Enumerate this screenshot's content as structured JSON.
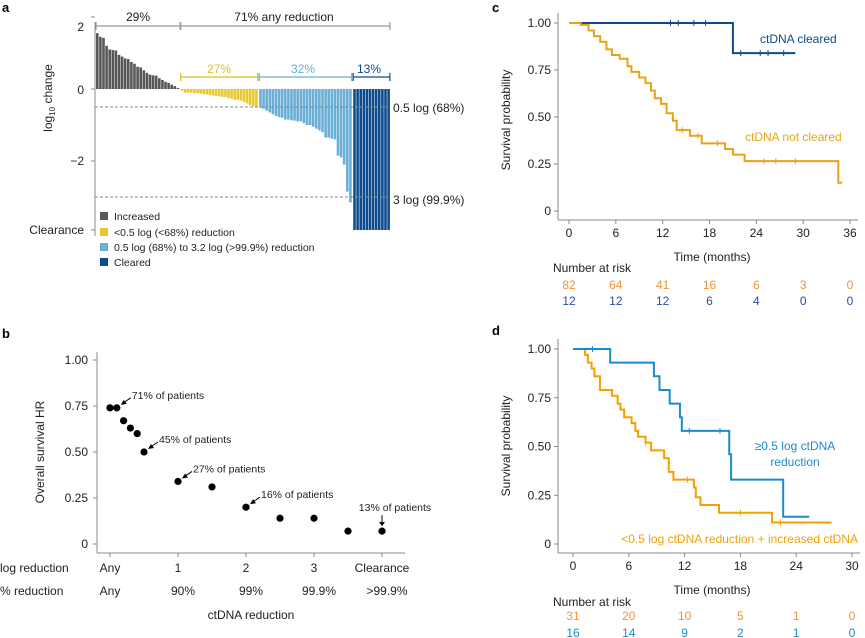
{
  "panels": {
    "a": "a",
    "b": "b",
    "c": "c",
    "d": "d"
  },
  "chart_data": [
    {
      "panel": "a",
      "type": "bar",
      "ylabel_main": "log",
      "ylabel_sub": "10",
      "ylabel_rest": " change",
      "yticks": [
        "2",
        "0",
        "−2",
        "Clearance"
      ],
      "ylim": [
        -4,
        2
      ],
      "colors": {
        "increased": "#575757",
        "small": "#e9c832",
        "mid": "#6aaed6",
        "cleared": "#0e4a8e"
      },
      "groups": [
        {
          "key": "increased",
          "values": [
            1.55,
            1.45,
            1.42,
            1.2,
            1.1,
            1.08,
            1.07,
            0.95,
            0.9,
            0.85,
            0.83,
            0.75,
            0.7,
            0.62,
            0.6,
            0.52,
            0.45,
            0.4,
            0.38,
            0.37,
            0.3,
            0.25,
            0.2,
            0.17,
            0.12,
            0.08,
            0.03
          ]
        },
        {
          "key": "small",
          "values": [
            -0.05,
            -0.1,
            -0.1,
            -0.1,
            -0.12,
            -0.12,
            -0.13,
            -0.15,
            -0.15,
            -0.17,
            -0.18,
            -0.2,
            -0.2,
            -0.22,
            -0.22,
            -0.25,
            -0.27,
            -0.3,
            -0.3,
            -0.32,
            -0.36,
            -0.4,
            -0.45,
            -0.48,
            -0.5
          ]
        },
        {
          "key": "mid",
          "values": [
            -0.52,
            -0.55,
            -0.6,
            -0.65,
            -0.7,
            -0.75,
            -0.78,
            -0.8,
            -0.85,
            -0.85,
            -0.87,
            -0.88,
            -0.9,
            -0.9,
            -0.95,
            -1.0,
            -1.0,
            -1.05,
            -1.1,
            -1.15,
            -1.2,
            -1.35,
            -1.35,
            -1.38,
            -1.4,
            -1.85,
            -1.9,
            -2.1,
            -2.85,
            -3.15
          ]
        },
        {
          "key": "cleared",
          "values": [
            "Clearance",
            "Clearance",
            "Clearance",
            "Clearance",
            "Clearance",
            "Clearance",
            "Clearance",
            "Clearance",
            "Clearance",
            "Clearance",
            "Clearance",
            "Clearance"
          ]
        }
      ],
      "reference_lines": [
        {
          "value": -0.5,
          "label": "0.5 log (68%)"
        },
        {
          "value": -3,
          "label": "3 log (99.9%)"
        }
      ],
      "brackets": {
        "increased": "29%",
        "any": "71% any reduction",
        "small": "27%",
        "mid": "32%",
        "cleared": "13%"
      },
      "legend": [
        "Increased",
        "<0.5 log (<68%) reduction",
        "0.5 log (68%) to 3.2 log (>99.9%) reduction",
        "Cleared"
      ]
    },
    {
      "panel": "b",
      "type": "scatter",
      "ylabel": "Overall survival HR",
      "xlabel": "ctDNA reduction",
      "yticks": [
        "1.00",
        "0.75",
        "0.50",
        "0.25",
        "0"
      ],
      "ylim": [
        0,
        1
      ],
      "row_labels": [
        "log reduction",
        "% reduction"
      ],
      "xticks_log": [
        "Any",
        "1",
        "2",
        "3",
        "Clearance"
      ],
      "xticks_pct": [
        "Any",
        "90%",
        "99%",
        "99.9%",
        ">99.9%"
      ],
      "x": [
        0,
        0.1,
        0.2,
        0.3,
        0.4,
        0.5,
        1,
        1.5,
        2,
        2.5,
        3,
        3.5,
        4
      ],
      "y": [
        0.74,
        0.74,
        0.67,
        0.63,
        0.6,
        0.5,
        0.34,
        0.31,
        0.2,
        0.14,
        0.14,
        0.07,
        0.07
      ],
      "annotations": [
        {
          "x": 0.1,
          "y": 0.74,
          "text": "71% of patients"
        },
        {
          "x": 0.5,
          "y": 0.5,
          "text": "45% of patients"
        },
        {
          "x": 1,
          "y": 0.34,
          "text": "27% of patients"
        },
        {
          "x": 2,
          "y": 0.2,
          "text": "16% of patients"
        },
        {
          "x": 4,
          "y": 0.07,
          "text": "13% of patients"
        }
      ]
    },
    {
      "panel": "c",
      "type": "line",
      "ylabel": "Survival probability",
      "xlabel": "Time (months)",
      "yticks": [
        "1.00",
        "0.75",
        "0.50",
        "0.25",
        "0"
      ],
      "ylim": [
        0,
        1
      ],
      "xticks": [
        "0",
        "6",
        "12",
        "18",
        "24",
        "30",
        "36"
      ],
      "xlim": [
        0,
        36
      ],
      "risk_title": "Number at risk",
      "series": [
        {
          "name": "ctDNA cleared",
          "color": "#0e4a8e",
          "steps": [
            [
              0,
              1
            ],
            [
              21,
              0.84
            ]
          ],
          "end": 29,
          "censor": [
            13,
            14,
            16,
            17.5,
            22,
            24.5,
            25.5,
            27.5
          ],
          "risk": [
            "12",
            "12",
            "12",
            "6",
            "4",
            "0",
            "0"
          ],
          "risk_color": "#2a4f9c"
        },
        {
          "name": "ctDNA not cleared",
          "color": "#e8a317",
          "steps": [
            [
              0,
              1
            ],
            [
              1.5,
              0.99
            ],
            [
              2.5,
              0.96
            ],
            [
              3.2,
              0.93
            ],
            [
              4,
              0.9
            ],
            [
              4.8,
              0.86
            ],
            [
              5.5,
              0.83
            ],
            [
              6.5,
              0.81
            ],
            [
              7.5,
              0.77
            ],
            [
              8,
              0.74
            ],
            [
              9,
              0.71
            ],
            [
              9.8,
              0.68
            ],
            [
              10.5,
              0.64
            ],
            [
              11,
              0.6
            ],
            [
              11.8,
              0.57
            ],
            [
              12.5,
              0.52
            ],
            [
              13.3,
              0.48
            ],
            [
              13.8,
              0.43
            ],
            [
              15.5,
              0.4
            ],
            [
              17,
              0.36
            ],
            [
              20,
              0.33
            ],
            [
              21,
              0.3
            ],
            [
              22.5,
              0.265
            ],
            [
              34.5,
              0.15
            ]
          ],
          "end": 35,
          "censor": [
            14.5,
            16.5,
            19,
            25,
            26.5,
            29
          ],
          "risk": [
            "82",
            "64",
            "41",
            "16",
            "6",
            "3",
            "0"
          ],
          "risk_color": "#f0923a"
        }
      ]
    },
    {
      "panel": "d",
      "type": "line",
      "ylabel": "Survival probability",
      "xlabel": "Time (months)",
      "yticks": [
        "1.00",
        "0.75",
        "0.50",
        "0.25",
        "0"
      ],
      "ylim": [
        0,
        1
      ],
      "xticks": [
        "0",
        "6",
        "12",
        "18",
        "24",
        "30"
      ],
      "xlim": [
        0,
        30
      ],
      "risk_title": "Number at risk",
      "series": [
        {
          "name": "<0.5 log ctDNA reduction + increased ctDNA",
          "color": "#f5a000",
          "steps": [
            [
              0,
              1
            ],
            [
              1.3,
              0.97
            ],
            [
              1.6,
              0.93
            ],
            [
              2,
              0.9
            ],
            [
              2.3,
              0.86
            ],
            [
              2.9,
              0.79
            ],
            [
              4.2,
              0.76
            ],
            [
              4.8,
              0.72
            ],
            [
              5.1,
              0.69
            ],
            [
              5.5,
              0.65
            ],
            [
              6.3,
              0.62
            ],
            [
              6.7,
              0.58
            ],
            [
              7,
              0.55
            ],
            [
              7.8,
              0.52
            ],
            [
              8.4,
              0.48
            ],
            [
              9.8,
              0.44
            ],
            [
              10.3,
              0.37
            ],
            [
              10.8,
              0.33
            ],
            [
              13,
              0.29
            ],
            [
              13.2,
              0.24
            ],
            [
              13.7,
              0.2
            ],
            [
              15.7,
              0.16
            ],
            [
              21.4,
              0.11
            ]
          ],
          "end": 27.8,
          "censor": [
            7.8,
            12.3,
            18,
            22.3
          ],
          "risk": [
            "31",
            "20",
            "10",
            "5",
            "1",
            "0"
          ],
          "risk_color": "#f0923a"
        },
        {
          "name_line1": "≥0.5 log ctDNA",
          "name_line2": "reduction",
          "color": "#1a8ccc",
          "steps": [
            [
              0,
              1
            ],
            [
              4,
              0.93
            ],
            [
              8.7,
              0.86
            ],
            [
              9.3,
              0.79
            ],
            [
              10.4,
              0.72
            ],
            [
              11.5,
              0.65
            ],
            [
              11.7,
              0.58
            ],
            [
              16.8,
              0.46
            ],
            [
              17,
              0.33
            ],
            [
              22.6,
              0.14
            ]
          ],
          "end": 25.4,
          "censor": [
            2.1,
            12.5,
            15.8
          ],
          "risk": [
            "16",
            "14",
            "9",
            "2",
            "1",
            "0"
          ],
          "risk_color": "#1a8ccc"
        }
      ]
    }
  ]
}
